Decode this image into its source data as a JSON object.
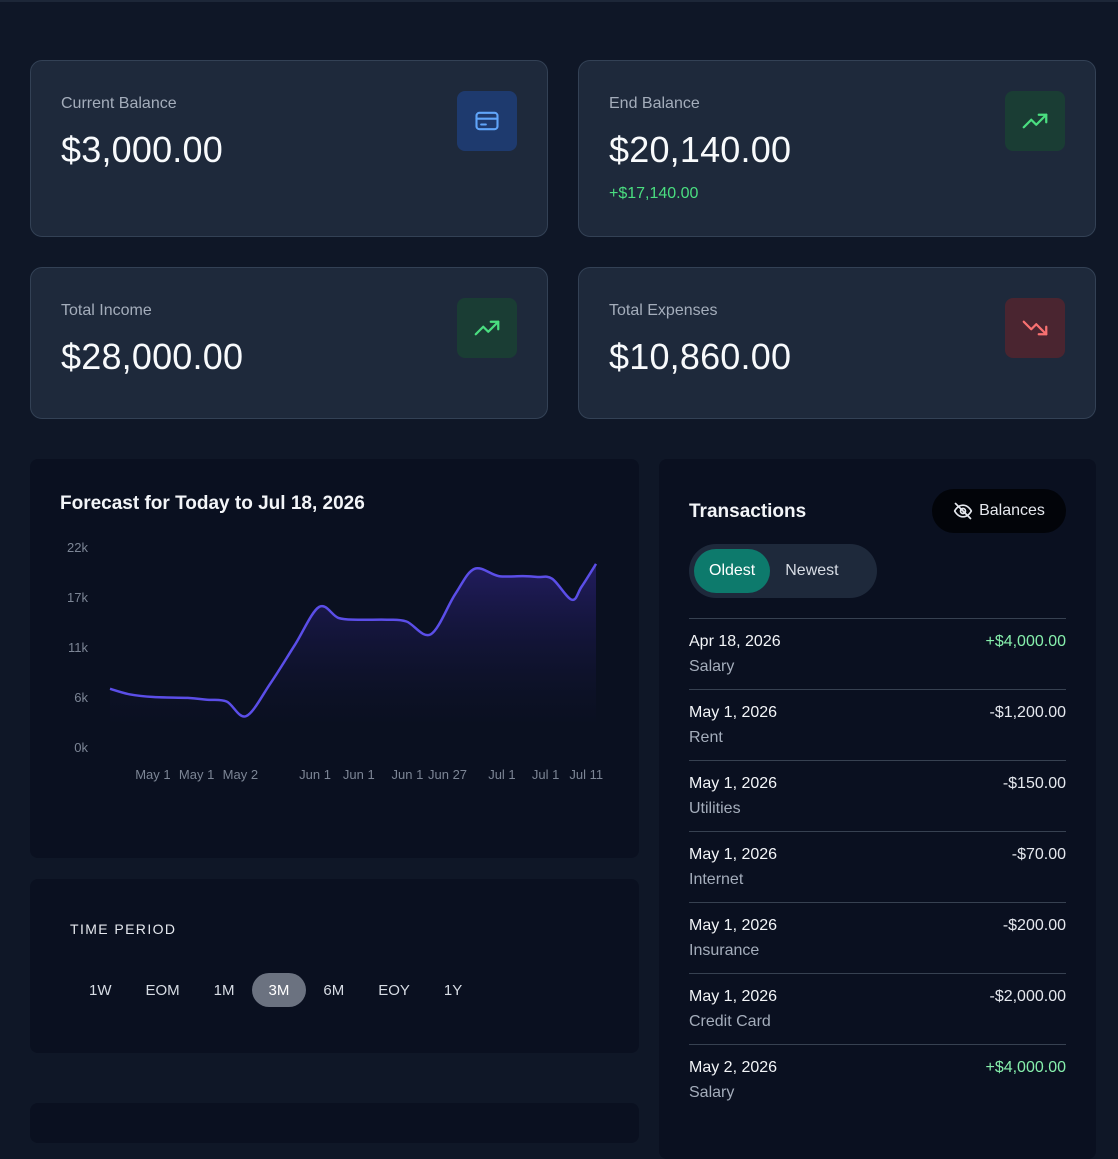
{
  "cards": {
    "current_balance": {
      "label": "Current Balance",
      "value": "$3,000.00",
      "icon": "credit-card-icon"
    },
    "end_balance": {
      "label": "End Balance",
      "value": "$20,140.00",
      "delta": "+$17,140.00",
      "icon": "trending-up-icon"
    },
    "total_income": {
      "label": "Total Income",
      "value": "$28,000.00",
      "icon": "trending-up-icon"
    },
    "total_expenses": {
      "label": "Total Expenses",
      "value": "$10,860.00",
      "icon": "trending-down-icon"
    }
  },
  "forecast": {
    "title": "Forecast for Today to Jul 18, 2026"
  },
  "chart_data": {
    "type": "area",
    "title": "Forecast for Today to Jul 18, 2026",
    "xlabel": "",
    "ylabel": "",
    "y_ticks": [
      "22k",
      "17k",
      "11k",
      "6k",
      "0k"
    ],
    "ylim": [
      0,
      22000
    ],
    "x_tick_labels": [
      "May 1",
      "May 1",
      "May 2",
      "Jun 1",
      "Jun 1",
      "Jun 1",
      "Jun 27",
      "Jul 1",
      "Jul 1",
      "Jul 11"
    ],
    "x_tick_positions": [
      0.1,
      0.19,
      0.28,
      0.43,
      0.52,
      0.62,
      0.71,
      0.81,
      0.9,
      0.99
    ],
    "x": [
      0,
      0.04,
      0.09,
      0.16,
      0.2,
      0.24,
      0.28,
      0.33,
      0.38,
      0.43,
      0.47,
      0.51,
      0.57,
      0.61,
      0.66,
      0.71,
      0.75,
      0.8,
      0.85,
      0.88,
      0.91,
      0.95,
      0.97,
      1.0
    ],
    "series": [
      {
        "values": [
          6400,
          5800,
          5500,
          5400,
          5200,
          5000,
          3400,
          7000,
          11200,
          15400,
          14200,
          14000,
          14000,
          13800,
          12400,
          16800,
          19600,
          18800,
          18800,
          18700,
          18500,
          16200,
          17600,
          20140
        ]
      }
    ],
    "grid": false,
    "colors": {
      "line": "#5b4ee8",
      "fill_top": "#231d63",
      "fill_bottom": "#0a1020"
    }
  },
  "time_period": {
    "label": "TIME PERIOD",
    "options": [
      "1W",
      "EOM",
      "1M",
      "3M",
      "6M",
      "EOY",
      "1Y"
    ],
    "selected": "3M"
  },
  "transactions": {
    "title": "Transactions",
    "balances_button": "Balances",
    "sort": {
      "oldest": "Oldest",
      "newest": "Newest",
      "selected": "Oldest"
    },
    "items": [
      {
        "date": "Apr 18, 2026",
        "desc": "Salary",
        "amount": "+$4,000.00",
        "positive": true
      },
      {
        "date": "May 1, 2026",
        "desc": "Rent",
        "amount": "-$1,200.00",
        "positive": false
      },
      {
        "date": "May 1, 2026",
        "desc": "Utilities",
        "amount": "-$150.00",
        "positive": false
      },
      {
        "date": "May 1, 2026",
        "desc": "Internet",
        "amount": "-$70.00",
        "positive": false
      },
      {
        "date": "May 1, 2026",
        "desc": "Insurance",
        "amount": "-$200.00",
        "positive": false
      },
      {
        "date": "May 1, 2026",
        "desc": "Credit Card",
        "amount": "-$2,000.00",
        "positive": false
      },
      {
        "date": "May 2, 2026",
        "desc": "Salary",
        "amount": "+$4,000.00",
        "positive": true
      }
    ]
  },
  "colors": {
    "background": "#0f1727",
    "card": "#1e293b",
    "panel": "#0a1020",
    "positive": "#4ade80",
    "negative": "#f87171",
    "accent_teal": "#0d7a6c",
    "accent_blue": "#60a5fa"
  }
}
